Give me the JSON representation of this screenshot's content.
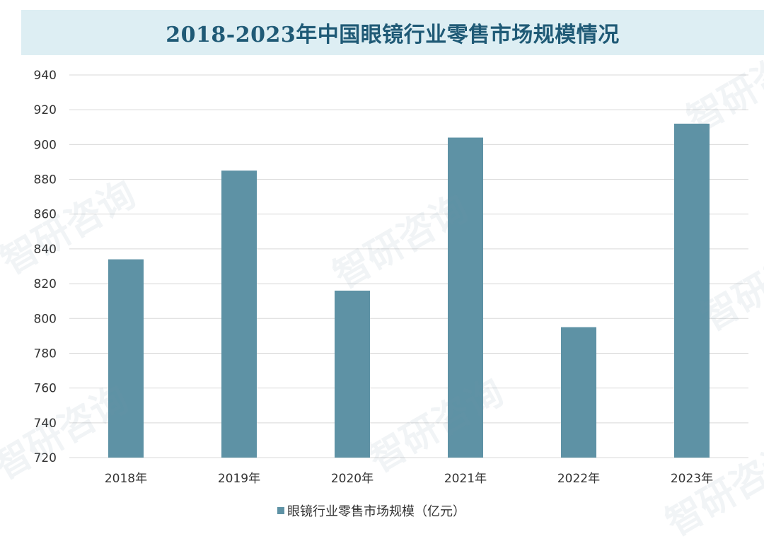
{
  "chart_data": {
    "type": "bar",
    "title": "2018-2023年中国眼镜行业零售市场规模情况",
    "categories": [
      "2018年",
      "2019年",
      "2020年",
      "2021年",
      "2022年",
      "2023年"
    ],
    "series": [
      {
        "name": "眼镜行业零售市场规模（亿元）",
        "values": [
          834,
          885,
          816,
          904,
          795,
          912
        ]
      }
    ],
    "ylim": [
      720,
      940
    ],
    "yticks": [
      720,
      740,
      760,
      780,
      800,
      820,
      840,
      860,
      880,
      900,
      920,
      940
    ],
    "grid": true,
    "legend_position": "bottom",
    "bar_color": "#5e92a5",
    "title_color": "#1f5a76",
    "title_background": "#ddeef3"
  },
  "watermarks": [
    "智研咨询",
    "智研咨询",
    "智研咨询",
    "智研咨询",
    "智研咨询",
    "智研咨询",
    "智研咨询"
  ]
}
